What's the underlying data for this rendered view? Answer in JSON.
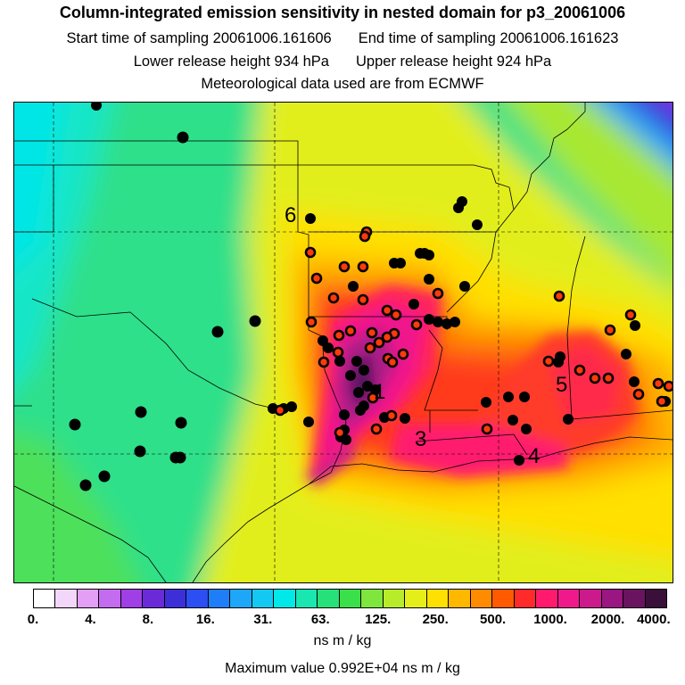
{
  "header": {
    "title": "Column-integrated emission sensitivity in nested domain for p3_20061006",
    "start_label": "Start time of sampling 20061006.161606",
    "end_label": "End time of sampling 20061006.161623",
    "lower_label": "Lower release height  934 hPa",
    "upper_label": "Upper release height  924 hPa",
    "met_label": "Meteorological data used are from ECMWF"
  },
  "map": {
    "cluster_labels": [
      "1",
      "3",
      "4",
      "5",
      "6"
    ]
  },
  "colorbar": {
    "colors": [
      "#ffffff",
      "#f2d7fb",
      "#e39ff6",
      "#c46cf0",
      "#a03fe6",
      "#6b2ad8",
      "#3c2fd8",
      "#2b4ff2",
      "#1e7ef8",
      "#1ea6f8",
      "#13c9f2",
      "#00e8e8",
      "#19e6b0",
      "#26e07a",
      "#3ae04a",
      "#7ee63c",
      "#b8ec2a",
      "#e6ee1a",
      "#ffe000",
      "#ffb800",
      "#ff8c00",
      "#ff5a00",
      "#ff2a2a",
      "#ff1a6e",
      "#f0198c",
      "#cc1a8c",
      "#9a1680",
      "#6a1460",
      "#3a0f3a"
    ],
    "tick_labels": [
      "0.",
      "4.",
      "8.",
      "16.",
      "31.",
      "63.",
      "125.",
      "250.",
      "500.",
      "1000.",
      "2000.",
      "4000."
    ],
    "unit": "ns m / kg"
  },
  "footer": {
    "max_value": "Maximum value  0.992E+04 ns m / kg"
  }
}
